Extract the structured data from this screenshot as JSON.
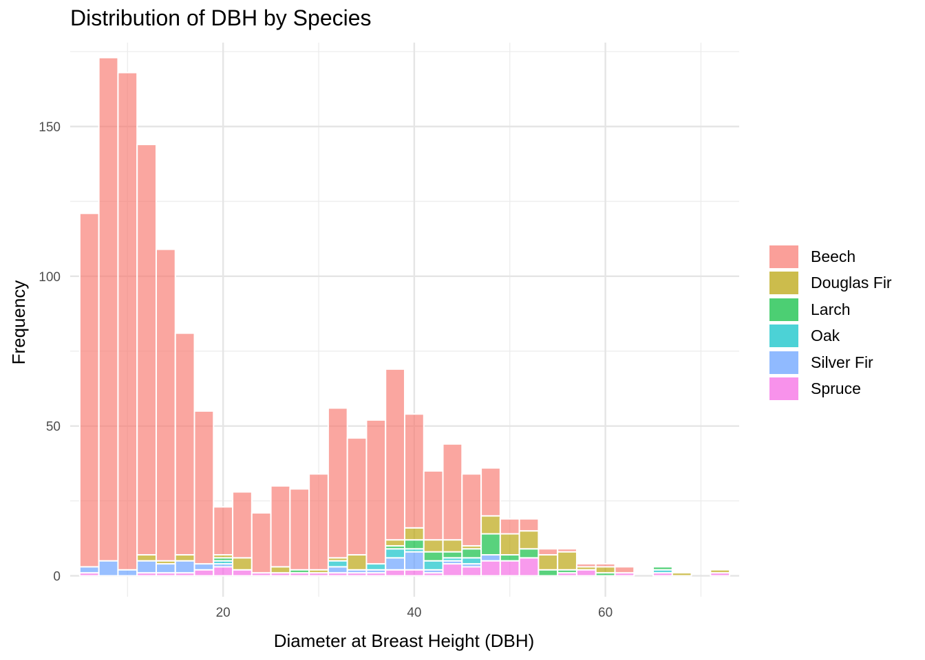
{
  "chart_data": {
    "type": "bar",
    "title": "Distribution of DBH by Species",
    "xlabel": "Diameter at Breast Height (DBH)",
    "ylabel": "Frequency",
    "x_range": [
      4,
      74
    ],
    "ylim": [
      -7,
      178
    ],
    "x_ticks": [
      20,
      40,
      60
    ],
    "y_ticks": [
      0,
      50,
      100,
      150
    ],
    "bin_width": 2,
    "stacked": true,
    "grid": true,
    "legend_position": "right",
    "bins": [
      6,
      8,
      10,
      12,
      14,
      16,
      18,
      20,
      22,
      24,
      26,
      28,
      30,
      32,
      34,
      36,
      38,
      40,
      42,
      44,
      46,
      48,
      50,
      52,
      54,
      56,
      58,
      60,
      62,
      64,
      66,
      68,
      70,
      72
    ],
    "series": [
      {
        "name": "Spruce",
        "color": "#F564E3",
        "values": [
          1,
          0,
          0,
          1,
          1,
          1,
          2,
          3,
          2,
          1,
          1,
          1,
          1,
          1,
          1,
          1,
          2,
          2,
          1,
          4,
          3,
          5,
          5,
          6,
          0,
          1,
          2,
          0,
          1,
          0,
          1,
          0,
          0,
          1
        ]
      },
      {
        "name": "Silver Fir",
        "color": "#619CFF",
        "values": [
          2,
          5,
          2,
          4,
          3,
          4,
          2,
          1,
          0,
          0,
          0,
          0,
          0,
          2,
          1,
          1,
          4,
          6,
          1,
          1,
          1,
          2,
          0,
          0,
          0,
          0,
          0,
          0,
          0,
          0,
          0,
          0,
          0,
          0
        ]
      },
      {
        "name": "Oak",
        "color": "#00BFC4",
        "values": [
          0,
          0,
          0,
          0,
          0,
          0,
          0,
          1,
          0,
          0,
          0,
          0,
          0,
          2,
          0,
          2,
          3,
          1,
          3,
          1,
          2,
          0,
          0,
          0,
          0,
          0,
          0,
          0,
          0,
          0,
          1,
          0,
          0,
          0
        ]
      },
      {
        "name": "Larch",
        "color": "#00BA38",
        "values": [
          0,
          0,
          0,
          0,
          0,
          0,
          0,
          1,
          0,
          0,
          0,
          1,
          0,
          0,
          0,
          0,
          1,
          3,
          3,
          2,
          3,
          7,
          2,
          3,
          2,
          1,
          0,
          1,
          0,
          0,
          1,
          0,
          0,
          0
        ]
      },
      {
        "name": "Douglas Fir",
        "color": "#B79F00",
        "values": [
          0,
          0,
          0,
          2,
          1,
          2,
          0,
          1,
          4,
          0,
          2,
          0,
          1,
          1,
          5,
          0,
          2,
          4,
          4,
          4,
          1,
          6,
          7,
          6,
          5,
          6,
          1,
          2,
          0,
          0,
          0,
          1,
          0,
          1
        ]
      },
      {
        "name": "Beech",
        "color": "#F8766D",
        "values": [
          118,
          168,
          166,
          137,
          104,
          74,
          51,
          16,
          22,
          20,
          27,
          27,
          32,
          50,
          39,
          48,
          57,
          38,
          23,
          32,
          24,
          16,
          5,
          4,
          2,
          1,
          1,
          1,
          2,
          0,
          0,
          0,
          0,
          0
        ]
      }
    ]
  }
}
